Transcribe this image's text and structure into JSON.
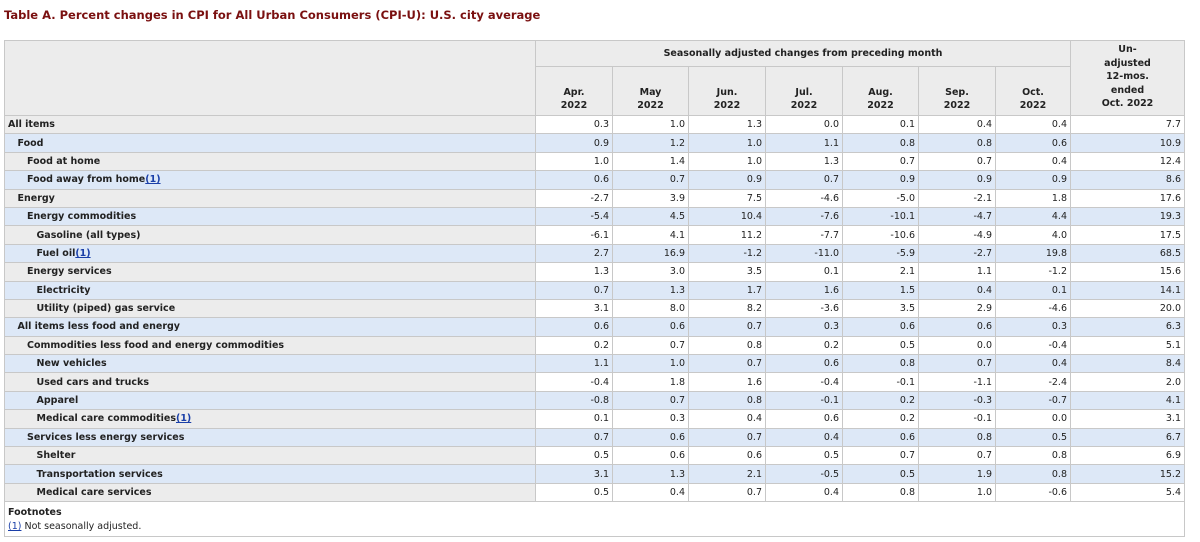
{
  "title": "Table A. Percent changes in CPI for All Urban Consumers (CPI-U): U.S. city average",
  "table": {
    "group_header": "Seasonally adjusted changes from preceding month",
    "columns": [
      {
        "month": "Apr.",
        "year": "2022"
      },
      {
        "month": "May",
        "year": "2022"
      },
      {
        "month": "Jun.",
        "year": "2022"
      },
      {
        "month": "Jul.",
        "year": "2022"
      },
      {
        "month": "Aug.",
        "year": "2022"
      },
      {
        "month": "Sep.",
        "year": "2022"
      },
      {
        "month": "Oct.",
        "year": "2022"
      }
    ],
    "last_header": [
      "Un-",
      "adjusted",
      "12-mos.",
      "ended",
      "Oct. 2022"
    ],
    "rows": [
      {
        "label": "All items",
        "values": [
          "0.3",
          "1.0",
          "1.3",
          "0.0",
          "0.1",
          "0.4",
          "0.4",
          "7.7"
        ]
      },
      {
        "label": "Food",
        "values": [
          "0.9",
          "1.2",
          "1.0",
          "1.1",
          "0.8",
          "0.8",
          "0.6",
          "10.9"
        ]
      },
      {
        "label": "Food at home",
        "values": [
          "1.0",
          "1.4",
          "1.0",
          "1.3",
          "0.7",
          "0.7",
          "0.4",
          "12.4"
        ]
      },
      {
        "label": "Food away from home",
        "note": "(1)",
        "values": [
          "0.6",
          "0.7",
          "0.9",
          "0.7",
          "0.9",
          "0.9",
          "0.9",
          "8.6"
        ]
      },
      {
        "label": "Energy",
        "values": [
          "-2.7",
          "3.9",
          "7.5",
          "-4.6",
          "-5.0",
          "-2.1",
          "1.8",
          "17.6"
        ]
      },
      {
        "label": "Energy commodities",
        "values": [
          "-5.4",
          "4.5",
          "10.4",
          "-7.6",
          "-10.1",
          "-4.7",
          "4.4",
          "19.3"
        ]
      },
      {
        "label": "Gasoline (all types)",
        "values": [
          "-6.1",
          "4.1",
          "11.2",
          "-7.7",
          "-10.6",
          "-4.9",
          "4.0",
          "17.5"
        ]
      },
      {
        "label": "Fuel oil",
        "note": "(1)",
        "values": [
          "2.7",
          "16.9",
          "-1.2",
          "-11.0",
          "-5.9",
          "-2.7",
          "19.8",
          "68.5"
        ]
      },
      {
        "label": "Energy services",
        "values": [
          "1.3",
          "3.0",
          "3.5",
          "0.1",
          "2.1",
          "1.1",
          "-1.2",
          "15.6"
        ]
      },
      {
        "label": "Electricity",
        "values": [
          "0.7",
          "1.3",
          "1.7",
          "1.6",
          "1.5",
          "0.4",
          "0.1",
          "14.1"
        ]
      },
      {
        "label": "Utility (piped) gas service",
        "values": [
          "3.1",
          "8.0",
          "8.2",
          "-3.6",
          "3.5",
          "2.9",
          "-4.6",
          "20.0"
        ]
      },
      {
        "label": "All items less food and energy",
        "values": [
          "0.6",
          "0.6",
          "0.7",
          "0.3",
          "0.6",
          "0.6",
          "0.3",
          "6.3"
        ]
      },
      {
        "label": "Commodities less food and energy commodities",
        "values": [
          "0.2",
          "0.7",
          "0.8",
          "0.2",
          "0.5",
          "0.0",
          "-0.4",
          "5.1"
        ]
      },
      {
        "label": "New vehicles",
        "values": [
          "1.1",
          "1.0",
          "0.7",
          "0.6",
          "0.8",
          "0.7",
          "0.4",
          "8.4"
        ]
      },
      {
        "label": "Used cars and trucks",
        "values": [
          "-0.4",
          "1.8",
          "1.6",
          "-0.4",
          "-0.1",
          "-1.1",
          "-2.4",
          "2.0"
        ]
      },
      {
        "label": "Apparel",
        "values": [
          "-0.8",
          "0.7",
          "0.8",
          "-0.1",
          "0.2",
          "-0.3",
          "-0.7",
          "4.1"
        ]
      },
      {
        "label": "Medical care commodities",
        "note": "(1)",
        "values": [
          "0.1",
          "0.3",
          "0.4",
          "0.6",
          "0.2",
          "-0.1",
          "0.0",
          "3.1"
        ]
      },
      {
        "label": "Services less energy services",
        "values": [
          "0.7",
          "0.6",
          "0.7",
          "0.4",
          "0.6",
          "0.8",
          "0.5",
          "6.7"
        ]
      },
      {
        "label": "Shelter",
        "values": [
          "0.5",
          "0.6",
          "0.6",
          "0.5",
          "0.7",
          "0.7",
          "0.8",
          "6.9"
        ]
      },
      {
        "label": "Transportation services",
        "values": [
          "3.1",
          "1.3",
          "2.1",
          "-0.5",
          "0.5",
          "1.9",
          "0.8",
          "15.2"
        ]
      },
      {
        "label": "Medical care services",
        "values": [
          "0.5",
          "0.4",
          "0.7",
          "0.4",
          "0.8",
          "1.0",
          "-0.6",
          "5.4"
        ]
      }
    ]
  },
  "footnotes": {
    "heading": "Footnotes",
    "items": [
      {
        "ref": "(1)",
        "text": "Not seasonally adjusted."
      }
    ]
  }
}
